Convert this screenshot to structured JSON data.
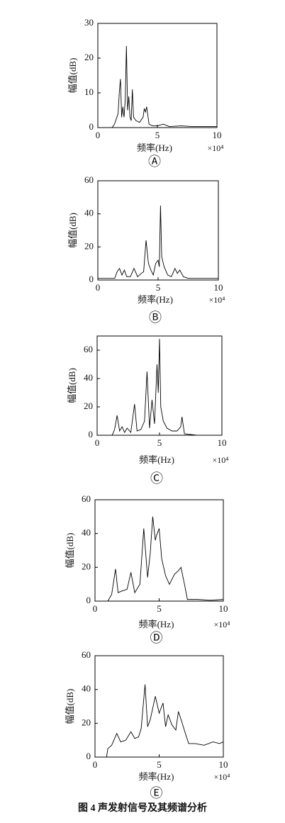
{
  "chart_data": [
    {
      "type": "line",
      "y_label": "幅值(dB)",
      "x_label": "频率(Hz)",
      "x_offset_text": "×10⁴",
      "panel_label": "Ⓐ",
      "xlim": [
        0,
        10
      ],
      "xticks": [
        0,
        5,
        10
      ],
      "ylim": [
        0,
        30
      ],
      "yticks": [
        0,
        10,
        20,
        30
      ],
      "color": "#000000",
      "x": [
        0,
        1.2,
        1.4,
        1.6,
        1.7,
        1.8,
        1.9,
        2.0,
        2.1,
        2.2,
        2.3,
        2.4,
        2.5,
        2.6,
        2.7,
        2.8,
        2.9,
        3.0,
        3.2,
        3.5,
        3.8,
        3.9,
        4.0,
        4.1,
        4.3,
        4.6,
        5.0,
        5.5,
        6.0,
        7.0,
        8.0,
        9.0,
        10
      ],
      "values": [
        0,
        0,
        1,
        3,
        4,
        10,
        14,
        3,
        6,
        3,
        8,
        23.5,
        5,
        9,
        3,
        2,
        11,
        3,
        2,
        1.5,
        3,
        5.5,
        4.5,
        6,
        1,
        0.5,
        0.5,
        1,
        0.3,
        0.5,
        0.3,
        0.3,
        0.3
      ]
    },
    {
      "type": "line",
      "y_label": "幅值(dB)",
      "x_label": "频率(Hz)",
      "x_offset_text": "×10⁴",
      "panel_label": "Ⓑ",
      "xlim": [
        0,
        10
      ],
      "xticks": [
        0,
        5,
        10
      ],
      "ylim": [
        0,
        60
      ],
      "yticks": [
        0,
        20,
        40,
        60
      ],
      "color": "#000000",
      "x": [
        0,
        1.4,
        1.6,
        1.8,
        2.0,
        2.2,
        2.4,
        2.7,
        3.0,
        3.3,
        3.6,
        3.8,
        4.0,
        4.2,
        4.4,
        4.6,
        4.8,
        5.0,
        5.1,
        5.2,
        5.3,
        5.5,
        5.8,
        6.1,
        6.4,
        6.6,
        6.8,
        7.1,
        7.5,
        8,
        9,
        10
      ],
      "values": [
        1,
        1,
        5,
        7,
        3,
        6,
        2,
        2,
        7,
        2,
        4,
        5,
        24,
        10,
        6,
        3,
        10,
        12,
        8,
        45,
        14,
        8,
        3,
        2,
        7,
        4,
        6,
        2,
        1,
        1,
        1,
        1
      ]
    },
    {
      "type": "line",
      "y_label": "幅值(dB)",
      "x_label": "频率(Hz)",
      "x_offset_text": "×10⁴",
      "panel_label": "Ⓒ",
      "xlim": [
        0,
        10
      ],
      "xticks": [
        0,
        5,
        10
      ],
      "ylim": [
        0,
        70
      ],
      "yticks": [
        0,
        20,
        40,
        60
      ],
      "color": "#000000",
      "x": [
        0,
        1.2,
        1.4,
        1.6,
        1.8,
        2.0,
        2.2,
        2.4,
        2.7,
        3.0,
        3.2,
        3.5,
        3.8,
        4.0,
        4.2,
        4.4,
        4.6,
        4.8,
        4.9,
        5.0,
        5.1,
        5.3,
        5.6,
        6.0,
        6.4,
        6.7,
        6.8,
        7.0,
        8,
        10
      ],
      "values": [
        0,
        0,
        4,
        14,
        3,
        6,
        2,
        5,
        2,
        22,
        3,
        4,
        10,
        45,
        5,
        25,
        8,
        50,
        30,
        68,
        20,
        10,
        5,
        3,
        3,
        6,
        13,
        1,
        0,
        0
      ]
    },
    {
      "type": "line",
      "y_label": "幅值(dB)",
      "x_label": "频率(Hz)",
      "x_offset_text": "×10⁴",
      "panel_label": "Ⓓ",
      "xlim": [
        0,
        10
      ],
      "xticks": [
        0,
        5,
        10
      ],
      "ylim": [
        0,
        60
      ],
      "yticks": [
        0,
        20,
        40,
        60
      ],
      "color": "#000000",
      "x": [
        0,
        1.0,
        1.3,
        1.6,
        1.8,
        2.1,
        2.5,
        2.8,
        3.1,
        3.5,
        3.8,
        4.1,
        4.3,
        4.5,
        4.7,
        4.8,
        5.0,
        5.2,
        5.5,
        5.8,
        6.2,
        6.5,
        6.7,
        7.0,
        7.2,
        8,
        9,
        10
      ],
      "values": [
        0,
        0,
        4,
        19,
        5,
        6,
        7,
        17,
        5,
        10,
        43,
        14,
        28,
        50,
        36,
        39,
        43,
        25,
        15,
        10,
        16,
        18,
        20,
        9,
        1,
        1,
        0.5,
        1
      ]
    },
    {
      "type": "line",
      "y_label": "幅值(dB)",
      "x_label": "频率(Hz)",
      "x_offset_text": "×10⁴",
      "panel_label": "Ⓔ",
      "xlim": [
        0,
        10
      ],
      "xticks": [
        0,
        5,
        10
      ],
      "ylim": [
        0,
        60
      ],
      "yticks": [
        0,
        20,
        40,
        60
      ],
      "color": "#000000",
      "x": [
        0,
        0.9,
        1.0,
        1.3,
        1.7,
        2.0,
        2.4,
        2.8,
        3.1,
        3.4,
        3.6,
        3.9,
        4.1,
        4.3,
        4.7,
        5.0,
        5.3,
        5.5,
        5.7,
        6.0,
        6.3,
        6.5,
        6.8,
        7.0,
        7.3,
        7.8,
        8.5,
        9.2,
        9.7,
        10
      ],
      "values": [
        0,
        0,
        5,
        7,
        14,
        9,
        10,
        15,
        11,
        12,
        17,
        43,
        18,
        22,
        36,
        26,
        32,
        18,
        25,
        19,
        16,
        27,
        20,
        15,
        8,
        8,
        7,
        9,
        8,
        9
      ]
    }
  ],
  "figure_caption": "图 4  声发射信号及其频谱分析"
}
